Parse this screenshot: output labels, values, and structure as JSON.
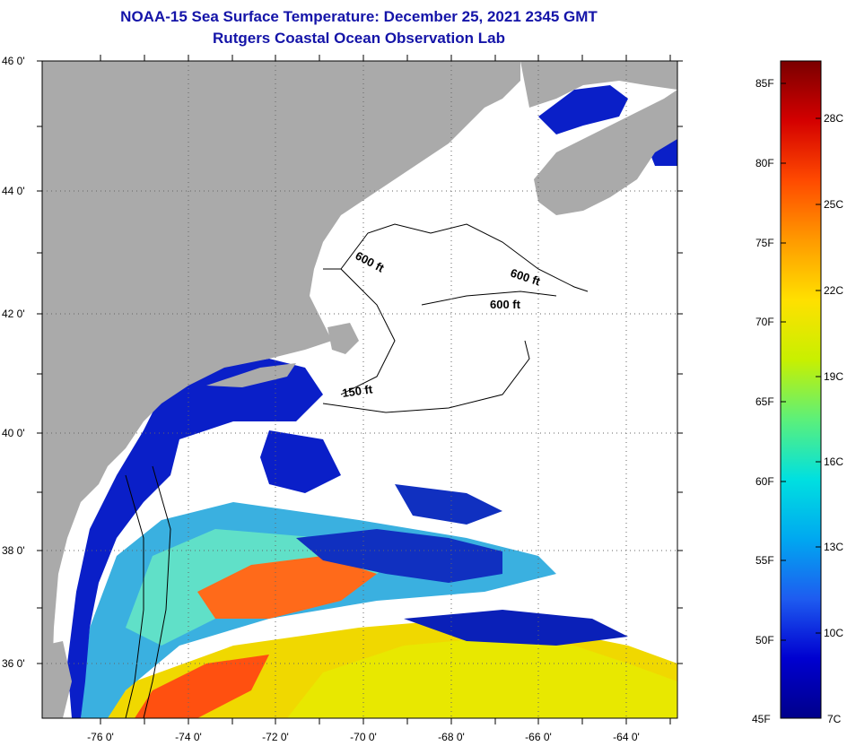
{
  "header": {
    "title": "NOAA-15 Sea Surface Temperature:  December 25, 2021 2345 GMT",
    "subtitle": "Rutgers Coastal Ocean Observation Lab"
  },
  "axes": {
    "lat_labels": [
      "46 0'",
      "44 0'",
      "42 0'",
      "40 0'",
      "38 0'",
      "36 0'"
    ],
    "lon_labels": [
      "-76 0'",
      "-74 0'",
      "-72 0'",
      "-70 0'",
      "-68 0'",
      "-66 0'",
      "-64 0'"
    ]
  },
  "contours": [
    "600 ft",
    "600 ft",
    "600 ft",
    "150 ft"
  ],
  "colorbar": {
    "fahrenheit": [
      "85F",
      "80F",
      "75F",
      "70F",
      "65F",
      "60F",
      "55F",
      "50F",
      "45F"
    ],
    "celsius": [
      "28C",
      "25C",
      "22C",
      "19C",
      "16C",
      "13C",
      "10C",
      "7C"
    ],
    "colors": [
      "#7a0000",
      "#d40000",
      "#ff4a00",
      "#ff9a00",
      "#ffe000",
      "#c8f000",
      "#5cf07a",
      "#00e0e0",
      "#00a8f0",
      "#1e5cf0",
      "#0000d0",
      "#00008a"
    ]
  },
  "colors": {
    "land": "#aaaaaa",
    "cloud": "#ffffff",
    "cold": "#0a1fc8",
    "mid": "#2aa0e8",
    "warm": "#ff6a1a",
    "hot": "#f0e000"
  }
}
